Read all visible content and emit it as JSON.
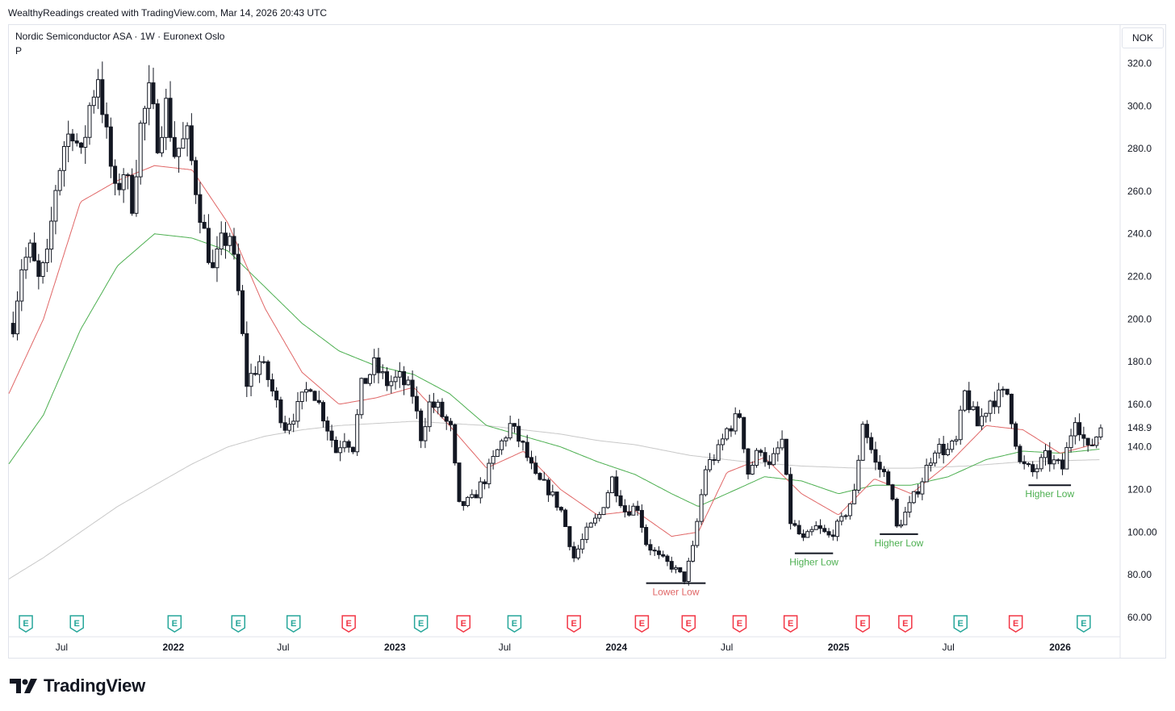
{
  "header": {
    "watermark": "WealthyReadings created with TradingView.com, Mar 14, 2026 20:43 UTC"
  },
  "legend": {
    "title": "Nordic Semiconductor ASA · 1W · Euronext Oslo",
    "sub": "P"
  },
  "currency_label": "NOK",
  "brand": {
    "name": "TradingView",
    "icon": "tradingview-logo-icon"
  },
  "colors": {
    "up_body": "#ffffff",
    "down_body": "#131722",
    "wick": "#131722",
    "ema_fast": "#e06666",
    "ema_mid": "#4caf50",
    "sma_slow": "#c8c8c8",
    "earnings_green": "#26a69a",
    "earnings_red": "#f23645",
    "annotation_red": "#e06666",
    "annotation_green": "#4caf50"
  },
  "chart_data": {
    "type": "candlestick",
    "symbol": "Nordic Semiconductor ASA",
    "interval": "1W",
    "exchange": "Euronext Oslo",
    "y_ticks": [
      "60.00",
      "80.00",
      "100.00",
      "120.0",
      "140.0",
      "160.0",
      "180.0",
      "200.0",
      "220.0",
      "240.0",
      "260.0",
      "280.0",
      "300.0",
      "320.0"
    ],
    "y_tick_values": [
      60,
      80,
      100,
      120,
      140,
      160,
      180,
      200,
      220,
      240,
      260,
      280,
      300,
      320
    ],
    "last_price_label": "148.9",
    "last_price": 148.9,
    "ylim": [
      52,
      338
    ],
    "x_start": "2021-04-05",
    "x_end": "2026-04-10",
    "x_ticks": [
      {
        "label": "Jul",
        "date": "2021-07-01",
        "bold": false
      },
      {
        "label": "2022",
        "date": "2022-01-01",
        "bold": true
      },
      {
        "label": "Jul",
        "date": "2022-07-01",
        "bold": false
      },
      {
        "label": "2023",
        "date": "2023-01-01",
        "bold": true
      },
      {
        "label": "Jul",
        "date": "2023-07-01",
        "bold": false
      },
      {
        "label": "2024",
        "date": "2024-01-01",
        "bold": true
      },
      {
        "label": "Jul",
        "date": "2024-07-01",
        "bold": false
      },
      {
        "label": "2025",
        "date": "2025-01-01",
        "bold": true
      },
      {
        "label": "Jul",
        "date": "2025-07-01",
        "bold": false
      },
      {
        "label": "2026",
        "date": "2026-01-01",
        "bold": true
      }
    ],
    "price_keypoints": [
      [
        "2021-04-12",
        198
      ],
      [
        "2021-04-26",
        225
      ],
      [
        "2021-05-10",
        232
      ],
      [
        "2021-05-24",
        218
      ],
      [
        "2021-06-07",
        228
      ],
      [
        "2021-06-21",
        262
      ],
      [
        "2021-07-05",
        282
      ],
      [
        "2021-07-19",
        290
      ],
      [
        "2021-08-02",
        275
      ],
      [
        "2021-08-16",
        300
      ],
      [
        "2021-08-30",
        315
      ],
      [
        "2021-09-13",
        285
      ],
      [
        "2021-09-27",
        258
      ],
      [
        "2021-10-11",
        270
      ],
      [
        "2021-10-25",
        255
      ],
      [
        "2021-11-08",
        290
      ],
      [
        "2021-11-22",
        305
      ],
      [
        "2021-12-06",
        285
      ],
      [
        "2021-12-20",
        300
      ],
      [
        "2022-01-03",
        278
      ],
      [
        "2022-01-24",
        285
      ],
      [
        "2022-02-07",
        262
      ],
      [
        "2022-02-21",
        240
      ],
      [
        "2022-03-07",
        222
      ],
      [
        "2022-03-21",
        235
      ],
      [
        "2022-04-04",
        240
      ],
      [
        "2022-04-18",
        212
      ],
      [
        "2022-05-02",
        170
      ],
      [
        "2022-05-23",
        180
      ],
      [
        "2022-06-06",
        172
      ],
      [
        "2022-06-20",
        160
      ],
      [
        "2022-07-04",
        150
      ],
      [
        "2022-07-25",
        158
      ],
      [
        "2022-08-15",
        170
      ],
      [
        "2022-09-05",
        155
      ],
      [
        "2022-09-26",
        138
      ],
      [
        "2022-10-10",
        145
      ],
      [
        "2022-10-24",
        140
      ],
      [
        "2022-11-07",
        168
      ],
      [
        "2022-11-28",
        178
      ],
      [
        "2022-12-19",
        170
      ],
      [
        "2023-01-09",
        172
      ],
      [
        "2023-01-30",
        165
      ],
      [
        "2023-02-13",
        145
      ],
      [
        "2023-02-27",
        160
      ],
      [
        "2023-03-13",
        158
      ],
      [
        "2023-04-03",
        148
      ],
      [
        "2023-04-17",
        112
      ],
      [
        "2023-05-08",
        115
      ],
      [
        "2023-05-29",
        125
      ],
      [
        "2023-06-19",
        138
      ],
      [
        "2023-07-10",
        150
      ],
      [
        "2023-07-31",
        140
      ],
      [
        "2023-08-21",
        125
      ],
      [
        "2023-09-11",
        120
      ],
      [
        "2023-10-02",
        110
      ],
      [
        "2023-10-23",
        88
      ],
      [
        "2023-11-13",
        100
      ],
      [
        "2023-12-04",
        108
      ],
      [
        "2023-12-25",
        125
      ],
      [
        "2024-01-15",
        110
      ],
      [
        "2024-02-05",
        112
      ],
      [
        "2024-02-19",
        95
      ],
      [
        "2024-03-11",
        88
      ],
      [
        "2024-04-01",
        84
      ],
      [
        "2024-04-22",
        78
      ],
      [
        "2024-05-06",
        92
      ],
      [
        "2024-05-27",
        130
      ],
      [
        "2024-06-17",
        138
      ],
      [
        "2024-07-01",
        148
      ],
      [
        "2024-07-22",
        155
      ],
      [
        "2024-08-05",
        128
      ],
      [
        "2024-08-26",
        140
      ],
      [
        "2024-09-09",
        130
      ],
      [
        "2024-09-30",
        143
      ],
      [
        "2024-10-14",
        105
      ],
      [
        "2024-11-04",
        96
      ],
      [
        "2024-11-25",
        102
      ],
      [
        "2024-12-16",
        98
      ],
      [
        "2025-01-06",
        105
      ],
      [
        "2025-01-27",
        118
      ],
      [
        "2025-02-10",
        152
      ],
      [
        "2025-03-03",
        132
      ],
      [
        "2025-03-24",
        125
      ],
      [
        "2025-04-07",
        102
      ],
      [
        "2025-04-28",
        112
      ],
      [
        "2025-05-19",
        125
      ],
      [
        "2025-06-09",
        140
      ],
      [
        "2025-06-30",
        138
      ],
      [
        "2025-07-14",
        142
      ],
      [
        "2025-07-28",
        165
      ],
      [
        "2025-08-18",
        150
      ],
      [
        "2025-09-08",
        162
      ],
      [
        "2025-10-06",
        165
      ],
      [
        "2025-10-27",
        132
      ],
      [
        "2025-11-17",
        128
      ],
      [
        "2025-12-08",
        135
      ],
      [
        "2026-01-05",
        130
      ],
      [
        "2026-01-26",
        155
      ],
      [
        "2026-02-16",
        138
      ],
      [
        "2026-03-09",
        148.9
      ]
    ],
    "ema_fast_keypoints": [
      [
        "2021-04-05",
        165
      ],
      [
        "2021-06-01",
        200
      ],
      [
        "2021-08-01",
        255
      ],
      [
        "2021-10-01",
        265
      ],
      [
        "2021-12-01",
        272
      ],
      [
        "2022-02-01",
        270
      ],
      [
        "2022-04-01",
        245
      ],
      [
        "2022-06-01",
        205
      ],
      [
        "2022-08-01",
        175
      ],
      [
        "2022-10-01",
        160
      ],
      [
        "2022-12-01",
        163
      ],
      [
        "2023-02-01",
        168
      ],
      [
        "2023-04-01",
        150
      ],
      [
        "2023-06-01",
        130
      ],
      [
        "2023-08-01",
        138
      ],
      [
        "2023-10-01",
        120
      ],
      [
        "2023-12-01",
        108
      ],
      [
        "2024-02-01",
        110
      ],
      [
        "2024-04-01",
        98
      ],
      [
        "2024-05-15",
        100
      ],
      [
        "2024-07-01",
        128
      ],
      [
        "2024-09-01",
        135
      ],
      [
        "2024-11-01",
        118
      ],
      [
        "2025-01-01",
        108
      ],
      [
        "2025-03-01",
        125
      ],
      [
        "2025-05-01",
        118
      ],
      [
        "2025-07-01",
        132
      ],
      [
        "2025-09-01",
        150
      ],
      [
        "2025-11-01",
        148
      ],
      [
        "2026-01-01",
        137
      ],
      [
        "2026-03-09",
        142
      ]
    ],
    "ema_mid_keypoints": [
      [
        "2021-04-05",
        132
      ],
      [
        "2021-06-01",
        155
      ],
      [
        "2021-08-01",
        195
      ],
      [
        "2021-10-01",
        225
      ],
      [
        "2021-12-01",
        240
      ],
      [
        "2022-02-01",
        238
      ],
      [
        "2022-04-01",
        232
      ],
      [
        "2022-06-01",
        215
      ],
      [
        "2022-08-01",
        198
      ],
      [
        "2022-10-01",
        185
      ],
      [
        "2022-12-01",
        178
      ],
      [
        "2023-02-01",
        174
      ],
      [
        "2023-04-01",
        165
      ],
      [
        "2023-06-01",
        150
      ],
      [
        "2023-08-01",
        145
      ],
      [
        "2023-10-01",
        140
      ],
      [
        "2023-12-01",
        133
      ],
      [
        "2024-02-01",
        127
      ],
      [
        "2024-04-01",
        118
      ],
      [
        "2024-05-15",
        112
      ],
      [
        "2024-07-01",
        118
      ],
      [
        "2024-09-01",
        126
      ],
      [
        "2024-11-01",
        124
      ],
      [
        "2025-01-01",
        118
      ],
      [
        "2025-03-01",
        122
      ],
      [
        "2025-05-01",
        122
      ],
      [
        "2025-07-01",
        126
      ],
      [
        "2025-09-01",
        134
      ],
      [
        "2025-11-01",
        138
      ],
      [
        "2026-01-01",
        137
      ],
      [
        "2026-03-09",
        139
      ]
    ],
    "sma_slow_keypoints": [
      [
        "2021-04-05",
        78
      ],
      [
        "2021-06-01",
        88
      ],
      [
        "2021-08-01",
        100
      ],
      [
        "2021-10-01",
        112
      ],
      [
        "2021-12-01",
        122
      ],
      [
        "2022-02-01",
        132
      ],
      [
        "2022-04-01",
        140
      ],
      [
        "2022-06-01",
        145
      ],
      [
        "2022-08-01",
        148
      ],
      [
        "2022-10-01",
        150
      ],
      [
        "2022-12-01",
        151
      ],
      [
        "2023-02-01",
        152
      ],
      [
        "2023-04-01",
        151
      ],
      [
        "2023-06-01",
        150
      ],
      [
        "2023-08-01",
        148
      ],
      [
        "2023-10-01",
        146
      ],
      [
        "2023-12-01",
        143
      ],
      [
        "2024-02-01",
        141
      ],
      [
        "2024-05-01",
        136
      ],
      [
        "2024-08-01",
        133
      ],
      [
        "2024-11-01",
        131
      ],
      [
        "2025-02-01",
        130
      ],
      [
        "2025-05-01",
        130
      ],
      [
        "2025-08-01",
        131
      ],
      [
        "2025-11-01",
        133
      ],
      [
        "2026-03-09",
        134
      ]
    ],
    "annotations": [
      {
        "text": "Lower Low",
        "color": "red",
        "level": 76,
        "from": "2024-02-19",
        "to": "2024-05-27"
      },
      {
        "text": "Higher Low",
        "color": "green",
        "level": 90,
        "from": "2024-10-21",
        "to": "2024-12-23"
      },
      {
        "text": "Higher Low",
        "color": "green",
        "level": 99,
        "from": "2025-03-10",
        "to": "2025-05-12"
      },
      {
        "text": "Higher Low",
        "color": "green",
        "level": 122,
        "from": "2025-11-10",
        "to": "2026-01-19"
      }
    ],
    "earnings_markers": [
      {
        "label": "E",
        "date": "2021-05-03",
        "color": "green"
      },
      {
        "label": "E",
        "date": "2021-07-26",
        "color": "green"
      },
      {
        "label": "E",
        "date": "2022-01-03",
        "color": "green"
      },
      {
        "label": "E",
        "date": "2022-04-18",
        "color": "green"
      },
      {
        "label": "E",
        "date": "2022-07-18",
        "color": "green"
      },
      {
        "label": "E",
        "date": "2022-10-17",
        "color": "red"
      },
      {
        "label": "E",
        "date": "2023-02-13",
        "color": "green"
      },
      {
        "label": "E",
        "date": "2023-04-24",
        "color": "red"
      },
      {
        "label": "E",
        "date": "2023-07-17",
        "color": "green"
      },
      {
        "label": "E",
        "date": "2023-10-23",
        "color": "red"
      },
      {
        "label": "E",
        "date": "2024-02-12",
        "color": "red"
      },
      {
        "label": "E",
        "date": "2024-04-29",
        "color": "red"
      },
      {
        "label": "E",
        "date": "2024-07-22",
        "color": "red"
      },
      {
        "label": "E",
        "date": "2024-10-14",
        "color": "red"
      },
      {
        "label": "E",
        "date": "2025-02-10",
        "color": "red"
      },
      {
        "label": "E",
        "date": "2025-04-21",
        "color": "red"
      },
      {
        "label": "E",
        "date": "2025-07-21",
        "color": "green"
      },
      {
        "label": "E",
        "date": "2025-10-20",
        "color": "red"
      },
      {
        "label": "E",
        "date": "2026-02-09",
        "color": "green"
      }
    ]
  }
}
